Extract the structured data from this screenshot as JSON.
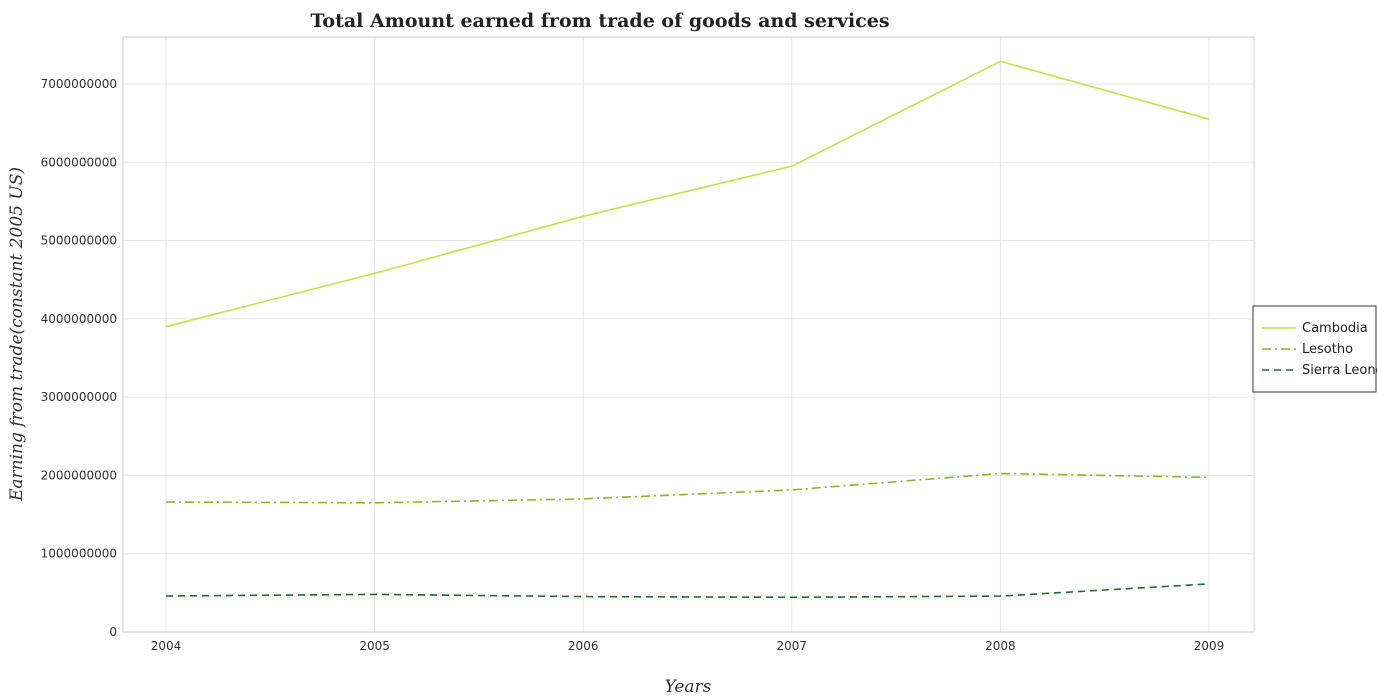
{
  "chart_data": {
    "type": "line",
    "title": "Total Amount earned from trade of goods and services",
    "xlabel": "Years",
    "ylabel": "Earning from trade(constant 2005 US)",
    "categories": [
      "2004",
      "2005",
      "2006",
      "2007",
      "2008",
      "2009"
    ],
    "ylim": [
      0,
      7600000000
    ],
    "yticks": [
      0,
      1000000000,
      2000000000,
      3000000000,
      4000000000,
      5000000000,
      6000000000,
      7000000000
    ],
    "ytick_labels": [
      "0",
      "1000000000",
      "2000000000",
      "3000000000",
      "4000000000",
      "5000000000",
      "6000000000",
      "7000000000"
    ],
    "grid": true,
    "legend_position": "right",
    "series": [
      {
        "name": "Cambodia",
        "color": "#c8e04a",
        "dash": "solid",
        "values": [
          3900000000,
          4580000000,
          5310000000,
          5950000000,
          7290000000,
          6550000000
        ]
      },
      {
        "name": "Lesotho",
        "color": "#88b82a",
        "dash": "dashdot",
        "values": [
          1660000000,
          1650000000,
          1700000000,
          1815000000,
          2025000000,
          1975000000
        ]
      },
      {
        "name": "Sierra Leone",
        "color": "#1f6b30",
        "dash": "dash",
        "values": [
          460000000,
          480000000,
          452000000,
          443000000,
          458000000,
          615000000
        ]
      }
    ]
  }
}
